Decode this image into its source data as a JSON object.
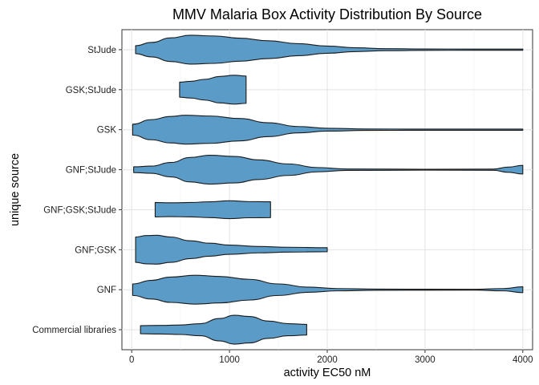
{
  "chart_data": {
    "type": "violin",
    "title": "MMV Malaria Box Activity Distribution By Source",
    "xlabel": "activity EC50 nM",
    "ylabel": "unique source",
    "xlim": [
      -100,
      4100
    ],
    "x_ticks": [
      0,
      1000,
      2000,
      3000,
      4000
    ],
    "categories": [
      "StJude",
      "GSK;StJude",
      "GSK",
      "GNF;StJude",
      "GNF;GSK;StJude",
      "GNF;GSK",
      "GNF",
      "Commercial libraries"
    ],
    "grid": true,
    "fill_color": "#5b9bc8",
    "outline_color": "#1a1a1a",
    "series": [
      {
        "category": "StJude",
        "min": 40,
        "max": 4000,
        "profile": [
          [
            40,
            0.28
          ],
          [
            200,
            0.5
          ],
          [
            400,
            0.82
          ],
          [
            600,
            1.0
          ],
          [
            850,
            0.95
          ],
          [
            1100,
            0.8
          ],
          [
            1400,
            0.62
          ],
          [
            1700,
            0.42
          ],
          [
            2000,
            0.25
          ],
          [
            2300,
            0.13
          ],
          [
            2600,
            0.07
          ],
          [
            3000,
            0.05
          ],
          [
            3500,
            0.04
          ],
          [
            4000,
            0.04
          ]
        ]
      },
      {
        "category": "GSK;StJude",
        "min": 490,
        "max": 1170,
        "profile": [
          [
            490,
            0.52
          ],
          [
            600,
            0.58
          ],
          [
            750,
            0.72
          ],
          [
            900,
            0.92
          ],
          [
            1050,
            1.0
          ],
          [
            1170,
            0.95
          ]
        ]
      },
      {
        "category": "GSK",
        "min": 10,
        "max": 4000,
        "profile": [
          [
            10,
            0.38
          ],
          [
            200,
            0.7
          ],
          [
            400,
            0.92
          ],
          [
            550,
            1.0
          ],
          [
            800,
            0.95
          ],
          [
            1100,
            0.78
          ],
          [
            1400,
            0.48
          ],
          [
            1700,
            0.22
          ],
          [
            2000,
            0.1
          ],
          [
            2400,
            0.05
          ],
          [
            3000,
            0.04
          ],
          [
            4000,
            0.04
          ]
        ]
      },
      {
        "category": "GNF;StJude",
        "min": 20,
        "max": 4000,
        "profile": [
          [
            20,
            0.2
          ],
          [
            200,
            0.25
          ],
          [
            400,
            0.5
          ],
          [
            600,
            0.85
          ],
          [
            800,
            1.0
          ],
          [
            1050,
            0.92
          ],
          [
            1300,
            0.68
          ],
          [
            1600,
            0.4
          ],
          [
            1900,
            0.15
          ],
          [
            2200,
            0.05
          ],
          [
            3000,
            0.03
          ],
          [
            3700,
            0.04
          ],
          [
            3850,
            0.18
          ],
          [
            4000,
            0.3
          ]
        ]
      },
      {
        "category": "GNF;GSK;StJude",
        "min": 240,
        "max": 1420,
        "profile": [
          [
            240,
            0.5
          ],
          [
            400,
            0.48
          ],
          [
            600,
            0.5
          ],
          [
            800,
            0.55
          ],
          [
            1000,
            0.62
          ],
          [
            1200,
            0.56
          ],
          [
            1420,
            0.55
          ]
        ]
      },
      {
        "category": "GNF;GSK",
        "min": 40,
        "max": 2000,
        "profile": [
          [
            40,
            0.88
          ],
          [
            150,
            0.98
          ],
          [
            250,
            1.0
          ],
          [
            400,
            0.88
          ],
          [
            600,
            0.62
          ],
          [
            800,
            0.45
          ],
          [
            1000,
            0.32
          ],
          [
            1300,
            0.22
          ],
          [
            1600,
            0.17
          ],
          [
            2000,
            0.14
          ]
        ]
      },
      {
        "category": "GNF",
        "min": 10,
        "max": 4000,
        "profile": [
          [
            10,
            0.4
          ],
          [
            200,
            0.65
          ],
          [
            400,
            0.88
          ],
          [
            650,
            1.0
          ],
          [
            900,
            0.92
          ],
          [
            1200,
            0.72
          ],
          [
            1500,
            0.4
          ],
          [
            1800,
            0.18
          ],
          [
            2100,
            0.08
          ],
          [
            2500,
            0.04
          ],
          [
            3500,
            0.03
          ],
          [
            3800,
            0.08
          ],
          [
            4000,
            0.2
          ]
        ]
      },
      {
        "category": "Commercial libraries",
        "min": 90,
        "max": 1790,
        "profile": [
          [
            90,
            0.28
          ],
          [
            300,
            0.3
          ],
          [
            500,
            0.33
          ],
          [
            700,
            0.42
          ],
          [
            900,
            0.78
          ],
          [
            1050,
            1.0
          ],
          [
            1200,
            0.92
          ],
          [
            1400,
            0.6
          ],
          [
            1600,
            0.42
          ],
          [
            1790,
            0.37
          ]
        ]
      }
    ]
  }
}
